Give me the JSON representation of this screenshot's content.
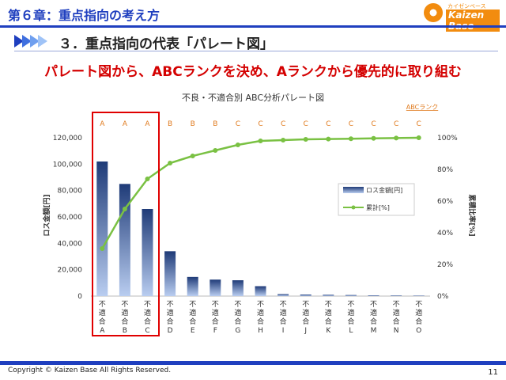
{
  "header": {
    "chapter_title": "第６章：重点指向の考え方",
    "logo_sub": "カイゼンベース",
    "logo_text": "Kaizen Base"
  },
  "section": {
    "title": "３．重点指向の代表「パレート図」"
  },
  "headline": "パレート図から、ABCランクを決め、Aランクから優先的に取り組む",
  "footer": {
    "copyright": "Copyright ©  Kaizen Base  All Rights Reserved.",
    "page": "11"
  },
  "colors": {
    "accent": "#1f3fbf",
    "bar": "#2f4f8f",
    "line": "#7ac143",
    "highlight": "#e00000",
    "rank": "#e07b1f"
  },
  "chart_data": {
    "type": "bar",
    "title": "不良・不適合別 ABC分析パレート図",
    "ylabel": "ロス金額[円]",
    "y2label": "累積比率[%]",
    "ylim": [
      0,
      120000
    ],
    "y2lim": [
      0,
      100
    ],
    "y_ticks": [
      "0",
      "20,000",
      "40,000",
      "60,000",
      "80,000",
      "100,000",
      "120,000"
    ],
    "y2_ticks": [
      "0%",
      "20%",
      "40%",
      "60%",
      "80%",
      "100%"
    ],
    "category_prefix": "不適合",
    "categories": [
      "A",
      "B",
      "C",
      "D",
      "E",
      "F",
      "G",
      "H",
      "I",
      "J",
      "K",
      "L",
      "M",
      "N",
      "O"
    ],
    "ranks_label": "ABCランク",
    "ranks": [
      "A",
      "A",
      "A",
      "B",
      "B",
      "B",
      "C",
      "C",
      "C",
      "C",
      "C",
      "C",
      "C",
      "C",
      "C"
    ],
    "legend_position": "right",
    "series": [
      {
        "name": "ロス金額[円]",
        "type": "bar",
        "values": [
          102000,
          85000,
          66000,
          34000,
          14500,
          12500,
          12000,
          7500,
          1500,
          1200,
          1000,
          800,
          600,
          500,
          400
        ]
      },
      {
        "name": "累計[%]",
        "type": "line",
        "axis": "right",
        "values": [
          30,
          55,
          74,
          84,
          88.5,
          92,
          95.5,
          98,
          98.5,
          99,
          99.2,
          99.4,
          99.6,
          99.8,
          100
        ]
      }
    ]
  }
}
